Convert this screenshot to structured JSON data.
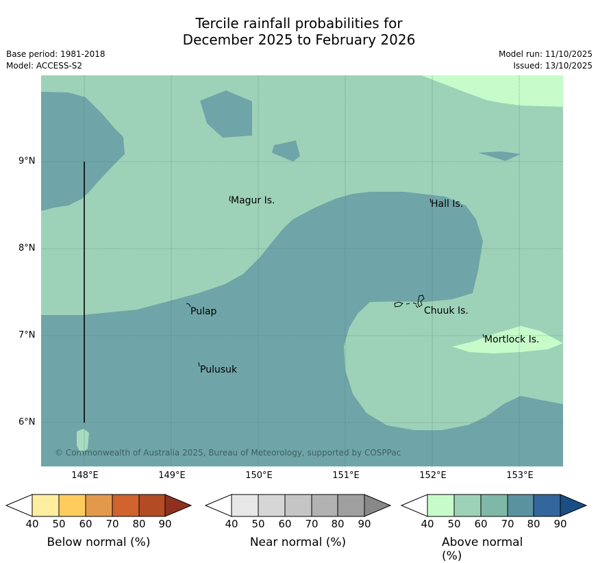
{
  "title_line1": "Tercile rainfall probabilities for",
  "title_line2": "December 2025 to February 2026",
  "meta": {
    "base_period": "Base period: 1981-2018",
    "model": "Model: ACCESS-S2",
    "model_run": "Model run: 11/10/2025",
    "issued": "Issued: 13/10/2025"
  },
  "map": {
    "copyright": "© Commonwealth of Australia 2025, Bureau of Meteorology, supported by COSPPac",
    "places": {
      "magur": "Magur Is.",
      "hall": "Hall Is.",
      "pulap": "Pulap",
      "chuuk": "Chuuk Is.",
      "mortlock": "Mortlock Is.",
      "pulusuk": "Pulusuk"
    },
    "lat_ticks": [
      "9°N",
      "8°N",
      "7°N",
      "6°N"
    ],
    "lon_ticks": [
      "148°E",
      "149°E",
      "150°E",
      "151°E",
      "152°E",
      "153°E"
    ]
  },
  "colorbars": {
    "below": {
      "title": "Below normal (%)",
      "ticks": [
        "40",
        "50",
        "60",
        "70",
        "80",
        "90"
      ],
      "colors": [
        "#ffffff",
        "#ffeda0",
        "#fecc5c",
        "#e3994b",
        "#d0632e",
        "#b34c24",
        "#8f3120"
      ]
    },
    "near": {
      "title": "Near normal (%)",
      "ticks": [
        "40",
        "50",
        "60",
        "70",
        "80",
        "90"
      ],
      "colors": [
        "#ffffff",
        "#e7e7e7",
        "#d6d6d6",
        "#c5c5c5",
        "#b2b2b2",
        "#9f9f9f",
        "#888888"
      ]
    },
    "above": {
      "title": "Above normal (%)",
      "ticks": [
        "40",
        "50",
        "60",
        "70",
        "80",
        "90"
      ],
      "colors": [
        "#ffffff",
        "#c7fcca",
        "#9dd2b9",
        "#7fb8a6",
        "#5a92a0",
        "#33669c",
        "#1a4f85"
      ]
    }
  }
}
